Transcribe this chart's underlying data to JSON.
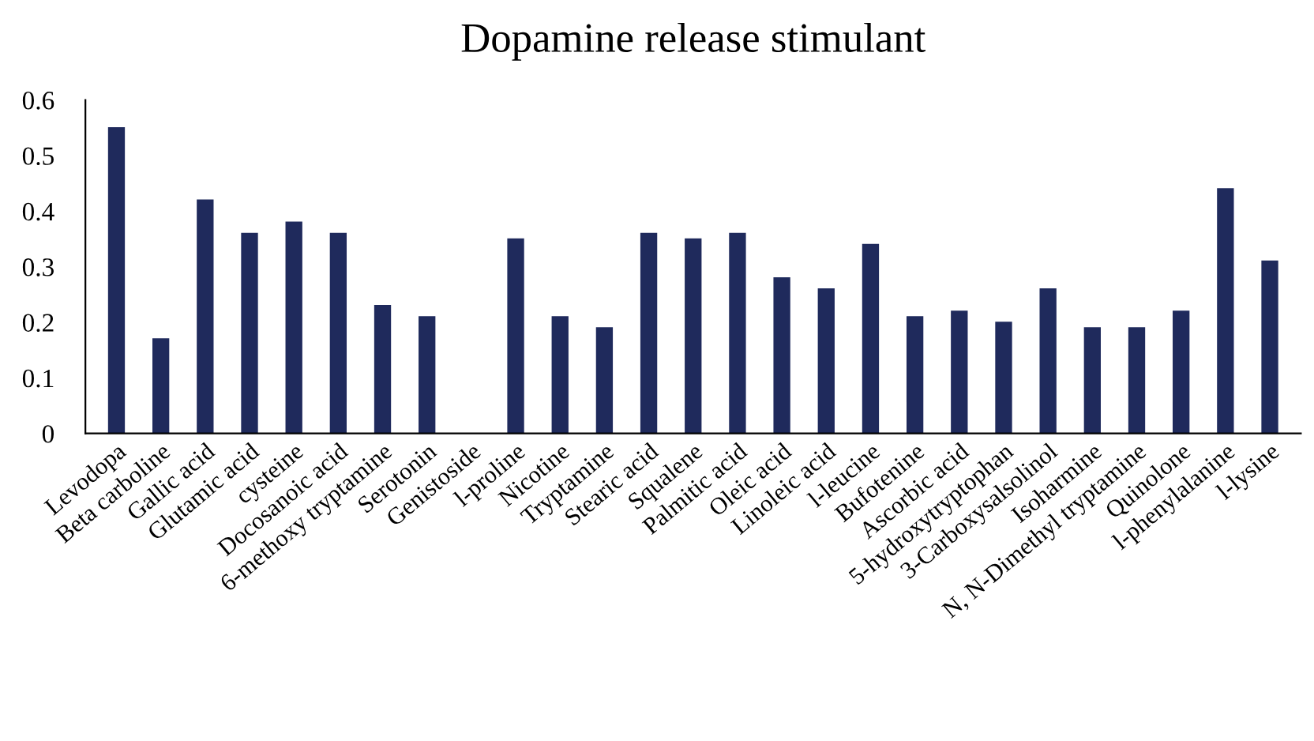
{
  "chart_data": {
    "type": "bar",
    "title": "Dopamine release stimulant",
    "categories": [
      "Levodopa",
      "Beta carboline",
      "Gallic acid",
      "Glutamic acid",
      "cysteine",
      "Docosanoic acid",
      "6-methoxy tryptamine",
      "Serotonin",
      "Genistoside",
      "l-proline",
      "Nicotine",
      "Tryptamine",
      "Stearic acid",
      "Squalene",
      "Palmitic acid",
      "Oleic acid",
      "Linoleic acid",
      "l-leucine",
      "Bufotenine",
      "Ascorbic acid",
      "5-hydroxytryptophan",
      "3-Carboxysalsolinol",
      "Isoharmine",
      "N, N-Dimethyl tryptamine",
      "Quinolone",
      "l-phenylalanine",
      "l-lysine"
    ],
    "values": [
      0.55,
      0.17,
      0.42,
      0.36,
      0.38,
      0.36,
      0.23,
      0.21,
      0,
      0.35,
      0.21,
      0.19,
      0.36,
      0.35,
      0.36,
      0.28,
      0.26,
      0.34,
      0.21,
      0.22,
      0.2,
      0.26,
      0.19,
      0.19,
      0.22,
      0.44,
      0.31
    ],
    "color": "#1f2a5c",
    "ylim": [
      0,
      0.6
    ],
    "yticks": [
      0,
      0.1,
      0.2,
      0.3,
      0.4,
      0.5,
      0.6
    ],
    "grid": false
  }
}
